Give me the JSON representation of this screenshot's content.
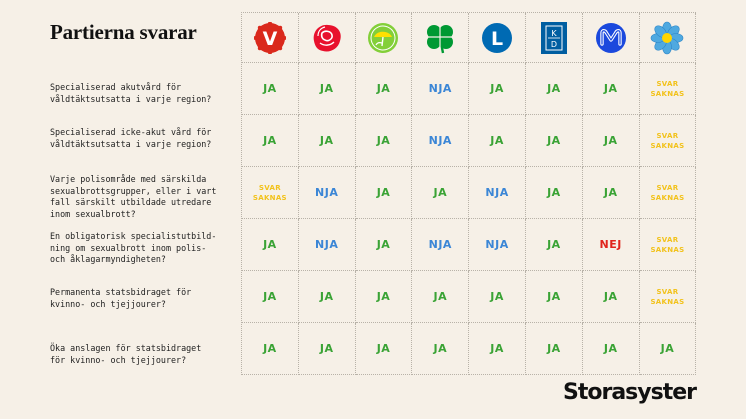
{
  "title": "Partierna svarar",
  "brand": "Storasyster",
  "parties": [
    {
      "icon": "v-logo-icon",
      "label": "V",
      "color": "#da291c"
    },
    {
      "icon": "s-rose-logo-icon",
      "label": "",
      "color": "#e8112d"
    },
    {
      "icon": "mp-dandelion-logo-icon",
      "label": "",
      "color": "#83cf39"
    },
    {
      "icon": "c-clover-logo-icon",
      "label": "",
      "color": "#009933"
    },
    {
      "icon": "l-logo-icon",
      "label": "L",
      "color": "#006ab3"
    },
    {
      "icon": "kd-logo-icon",
      "label": "K\nD",
      "color": "#005ea1"
    },
    {
      "icon": "m-logo-icon",
      "label": "M",
      "color": "#1b49dd"
    },
    {
      "icon": "sd-flower-logo-icon",
      "label": "",
      "color": "#4fa9e0"
    }
  ],
  "questions": [
    {
      "text": "Specialiserad akutvård för\nvåldtäktsutsatta i varje region?",
      "answers": [
        "JA",
        "JA",
        "JA",
        "NJA",
        "JA",
        "JA",
        "JA",
        "SVAR\nSAKNAS"
      ]
    },
    {
      "text": "Specialiserad icke-akut vård för\nvåldtäktsutsatta i varje region?",
      "answers": [
        "JA",
        "JA",
        "JA",
        "NJA",
        "JA",
        "JA",
        "JA",
        "SVAR\nSAKNAS"
      ]
    },
    {
      "text": "Varje polisområde med särskilda\nsexualbrottsgrupper, eller i vart\nfall särskilt utbildade utredare\ninom sexualbrott?",
      "answers": [
        "SVAR\nSAKNAS",
        "NJA",
        "JA",
        "JA",
        "NJA",
        "JA",
        "JA",
        "SVAR\nSAKNAS"
      ]
    },
    {
      "text": "En obligatorisk specialistutbild-\nning om sexualbrott inom polis-\noch åklagarmyndigheten?",
      "answers": [
        "JA",
        "NJA",
        "JA",
        "NJA",
        "NJA",
        "JA",
        "NEJ",
        "SVAR\nSAKNAS"
      ]
    },
    {
      "text": "Permanenta statsbidraget för\nkvinno- och tjejjourer?",
      "answers": [
        "JA",
        "JA",
        "JA",
        "JA",
        "JA",
        "JA",
        "JA",
        "SVAR\nSAKNAS"
      ]
    },
    {
      "text": "Öka anslagen för statsbidraget\nför kvinno- och tjejjourer?",
      "answers": [
        "JA",
        "JA",
        "JA",
        "JA",
        "JA",
        "JA",
        "JA",
        "JA"
      ]
    }
  ]
}
